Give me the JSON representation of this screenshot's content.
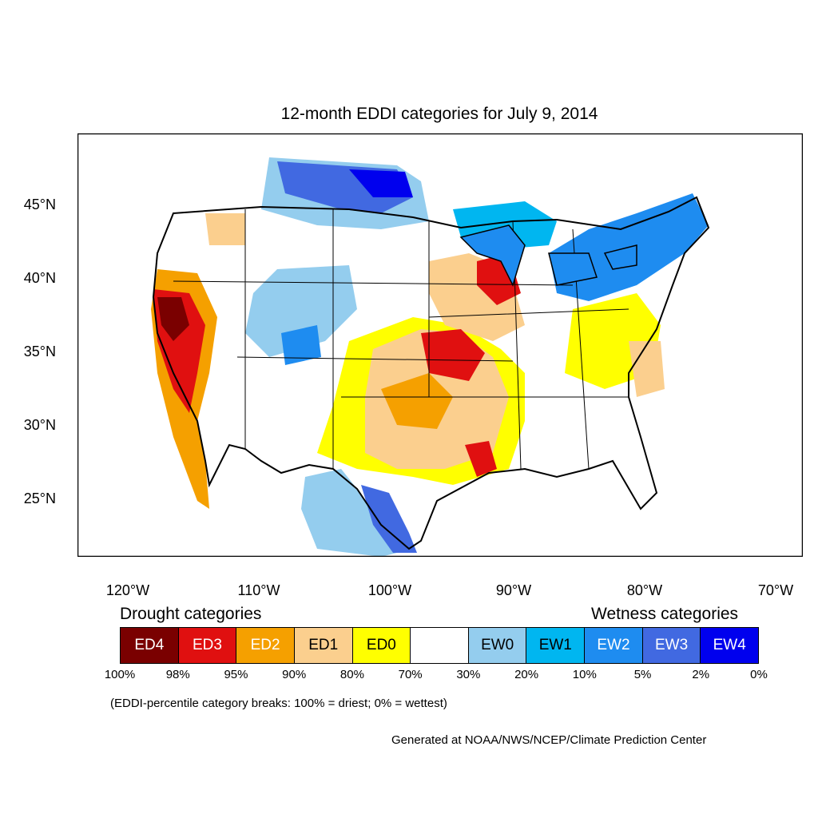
{
  "title": "12-month EDDI categories for July 9, 2014",
  "map": {
    "lat_labels": [
      "45°N",
      "40°N",
      "35°N",
      "30°N",
      "25°N"
    ],
    "lon_labels": [
      "120°W",
      "110°W",
      "100°W",
      "90°W",
      "80°W",
      "70°W"
    ]
  },
  "legend": {
    "drought_heading": "Drought categories",
    "wetness_heading": "Wetness categories",
    "categories": [
      {
        "label": "ED4",
        "color": "#7a0000",
        "text_color": "#ffffff"
      },
      {
        "label": "ED3",
        "color": "#e01010",
        "text_color": "#ffffff"
      },
      {
        "label": "ED2",
        "color": "#f5a000",
        "text_color": "#ffffff"
      },
      {
        "label": "ED1",
        "color": "#fbcf8e",
        "text_color": "#000000"
      },
      {
        "label": "ED0",
        "color": "#ffff00",
        "text_color": "#000000"
      },
      {
        "label": "",
        "color": "#ffffff",
        "text_color": "#000000"
      },
      {
        "label": "EW0",
        "color": "#94cdee",
        "text_color": "#000000"
      },
      {
        "label": "EW1",
        "color": "#00b6f0",
        "text_color": "#000000"
      },
      {
        "label": "EW2",
        "color": "#1e8cf0",
        "text_color": "#ffffff"
      },
      {
        "label": "EW3",
        "color": "#4169e1",
        "text_color": "#ffffff"
      },
      {
        "label": "EW4",
        "color": "#0000ee",
        "text_color": "#ffffff"
      }
    ],
    "breaks": [
      "100%",
      "98%",
      "95%",
      "90%",
      "80%",
      "70%",
      "30%",
      "20%",
      "10%",
      "5%",
      "2%",
      "0%"
    ],
    "note": "(EDDI-percentile category breaks: 100% = driest; 0% = wettest)"
  },
  "credit": "Generated at NOAA/NWS/NCEP/Climate Prediction Center"
}
